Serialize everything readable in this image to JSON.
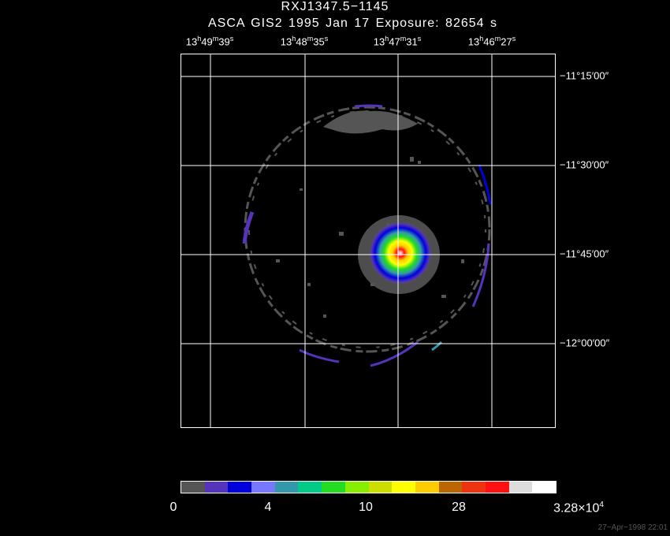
{
  "header": {
    "title": "RXJ1347.5−1145",
    "subtitle": "ASCA GIS2   1995 Jan 17    Exposure: 82654 s"
  },
  "ra_labels": [
    {
      "h": "13",
      "m": "49",
      "s": "39"
    },
    {
      "h": "13",
      "m": "48",
      "s": "35"
    },
    {
      "h": "13",
      "m": "47",
      "s": "31"
    },
    {
      "h": "13",
      "m": "46",
      "s": "27"
    }
  ],
  "unit_symbols": {
    "hour": "h",
    "minute": "m",
    "second": "s"
  },
  "dec_labels": [
    "−11°15′00″",
    "−11°30′00″",
    "−11°45′00″",
    "−12°00′00″"
  ],
  "colorbar": {
    "colors": [
      "#555555",
      "#5533bb",
      "#0000dd",
      "#7777ff",
      "#3399aa",
      "#00cc88",
      "#22dd22",
      "#88ee00",
      "#ccdd00",
      "#ffff00",
      "#ffcc00",
      "#bb6600",
      "#ee3311",
      "#ff1111",
      "#dddddd",
      "#ffffff"
    ],
    "labels": {
      "l0": "0",
      "l1": "4",
      "l2": "10",
      "l3": "28",
      "l4_base": "3.28×10",
      "l4_exp": "4"
    }
  },
  "source": {
    "name_colors": {
      "background": "#000000",
      "grid": "#ffffff",
      "faint": "#555555",
      "dim": "#5533bb",
      "blue": "#0000dd",
      "cyan": "#3399aa",
      "green": "#22dd22",
      "yellow": "#ffff00",
      "orange": "#ffcc00",
      "red": "#ff1111",
      "white": "#ffffff"
    }
  },
  "timestamp": "27−Apr−1998 22:01"
}
